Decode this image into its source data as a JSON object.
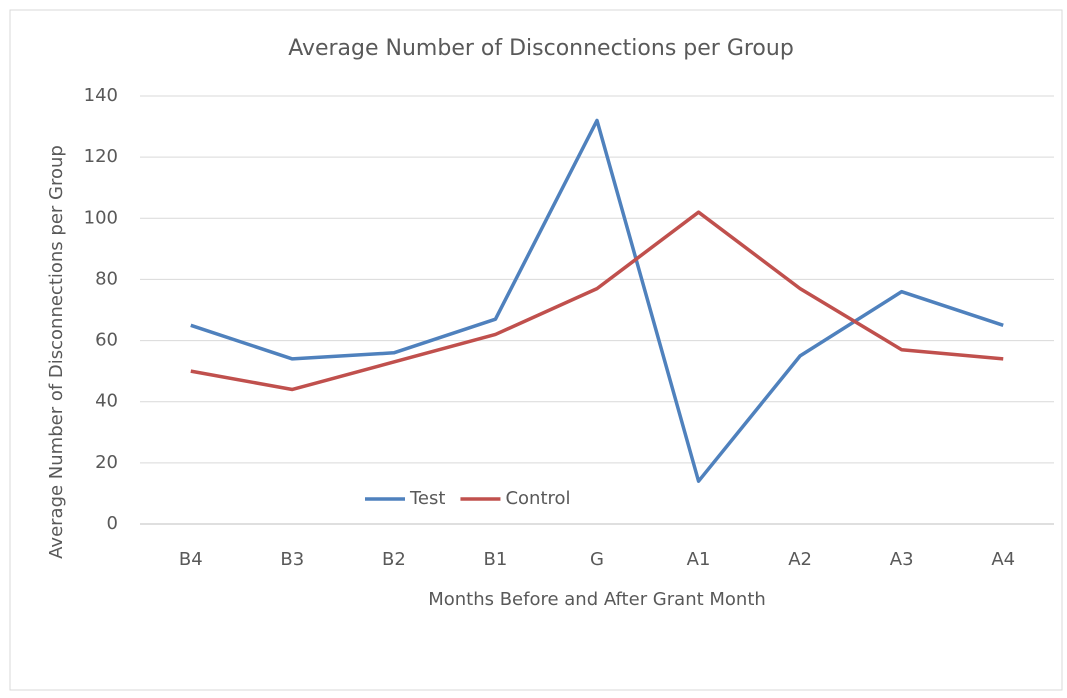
{
  "chart_data": {
    "type": "line",
    "title": "Average Number of Disconnections per Group",
    "x_label": "Months Before and After Grant Month",
    "y_label": "Average Number of Disconnections per Group",
    "categories": [
      "B4",
      "B3",
      "B2",
      "B1",
      "G",
      "A1",
      "A2",
      "A3",
      "A4"
    ],
    "series": [
      {
        "name": "Test",
        "color": "#4f81bd",
        "values": [
          65,
          54,
          56,
          67,
          132,
          14,
          55,
          76,
          65
        ]
      },
      {
        "name": "Control",
        "color": "#c0504d",
        "values": [
          50,
          44,
          53,
          62,
          77,
          102,
          77,
          57,
          54
        ]
      }
    ],
    "ylim": [
      0,
      140
    ],
    "yticks": [
      0,
      20,
      40,
      60,
      80,
      100,
      120,
      140
    ],
    "grid": true,
    "legend": "bottom"
  }
}
